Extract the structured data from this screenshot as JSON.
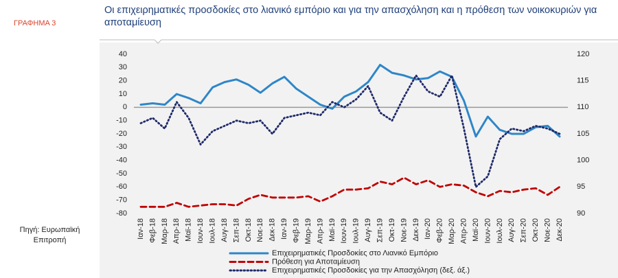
{
  "label": "ΓΡΑΦΗΜΑ 3",
  "source": "Πηγή: Ευρωπαϊκή Επιτροπή",
  "chart_data": {
    "type": "line",
    "title": "Οι επιχειρηματικές προσδοκίες στο λιανικό εμπόριο και για την απασχόληση και η πρόθεση των νοικοκυριών για αποταμίευση",
    "categories": [
      "Ιαν-18",
      "Φεβ-18",
      "Μαρ-18",
      "Απρ-18",
      "Μαϊ-18",
      "Ιουν-18",
      "Ιουλ-18",
      "Αυγ-18",
      "Σεπ-18",
      "Οκτ-18",
      "Νοε-18",
      "Δεκ-18",
      "Ιαν-19",
      "Φεβ-19",
      "Μαρ-19",
      "Απρ-19",
      "Μαϊ-19",
      "Ιουν-19",
      "Ιουλ-19",
      "Αυγ-19",
      "Σεπ-19",
      "Οκτ-19",
      "Νοε-19",
      "Δεκ-19",
      "Ιαν-20",
      "Φεβ-20",
      "Μαρ-20",
      "Απρ-20",
      "Μαϊ-20",
      "Ιουν-20",
      "Ιουλ-20",
      "Αυγ-20",
      "Σεπ-20",
      "Οκτ-20",
      "Νοε-20",
      "Δεκ-20"
    ],
    "series": [
      {
        "name": "Επιχειρηματικές Προσδοκίες στο Λιανικό Εμπόριο",
        "color": "#2e86c8",
        "style": "solid",
        "values": [
          2,
          3,
          2,
          10,
          7,
          3,
          15,
          19,
          21,
          17,
          11,
          18,
          23,
          14,
          8,
          2,
          -1,
          8,
          12,
          19,
          32,
          26,
          24,
          21,
          22,
          27,
          23,
          5,
          -22,
          -7,
          -17,
          -20,
          -20,
          -15,
          -14,
          -22
        ]
      },
      {
        "name": "Πρόθεση για Αποταμίευση",
        "color": "#c00000",
        "style": "dashed",
        "values": [
          -75,
          -75,
          -75,
          -72,
          -75,
          -74,
          -73,
          -73,
          -74,
          -69,
          -66,
          -68,
          -68,
          -68,
          -67,
          -71,
          -67,
          -62,
          -62,
          -61,
          -56,
          -58,
          -53,
          -58,
          -55,
          -60,
          -58,
          -59,
          -64,
          -67,
          -63,
          -64,
          -62,
          -61,
          -66,
          -60
        ]
      },
      {
        "name": "Επιχειρηματικές Προσδοκίες για την Απασχόληση (δεξ. άξ.)",
        "color": "#1f2a6b",
        "style": "dotted",
        "axis": "y2",
        "values": [
          107,
          108,
          106,
          111,
          108,
          103,
          105.5,
          106.5,
          107.5,
          107,
          107.5,
          105,
          108,
          108.5,
          109,
          108.5,
          111,
          110,
          111.5,
          114,
          109,
          107.5,
          112,
          116,
          113,
          112,
          116,
          106,
          95,
          97,
          104,
          106,
          105.5,
          106.5,
          106,
          105
        ]
      }
    ],
    "ylim": [
      -80,
      40
    ],
    "yticks": [
      -80,
      -70,
      -60,
      -50,
      -40,
      -30,
      -20,
      -10,
      0,
      10,
      20,
      30,
      40
    ],
    "y2lim": [
      90,
      120
    ],
    "y2ticks": [
      90,
      95,
      100,
      105,
      110,
      115,
      120
    ]
  }
}
